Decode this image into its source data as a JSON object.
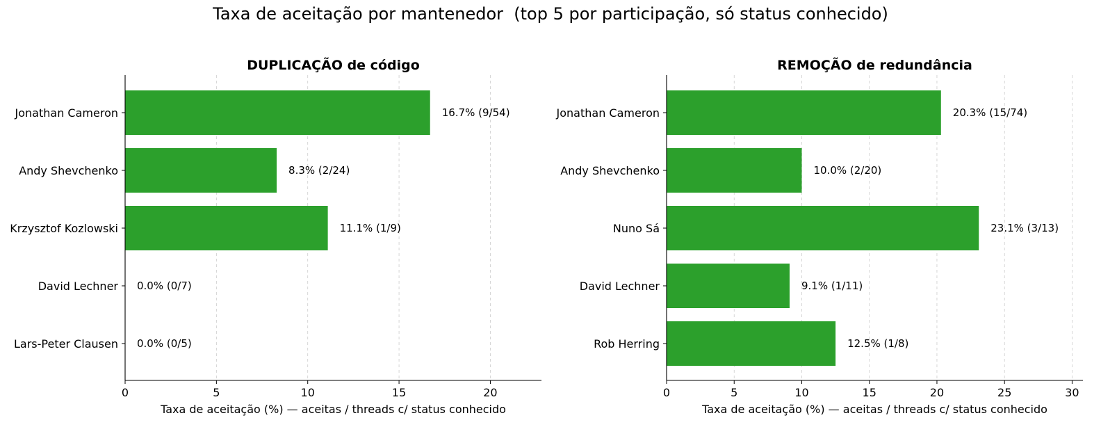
{
  "suptitle": "Taxa de aceitação por mantenedor  (top 5 por participação, só status conhecido)",
  "colors": {
    "bar": "#2ca02c",
    "grid": "#cccccc",
    "axis": "#000000"
  },
  "chart_data": [
    {
      "type": "bar",
      "orientation": "horizontal",
      "title": "DUPLICAÇÃO de código",
      "xlabel": "Taxa de aceitação (%) — aceitas / threads c/ status conhecido",
      "ylabel": "",
      "xlim": [
        0,
        22.8
      ],
      "xticks": [
        0,
        5,
        10,
        15,
        20
      ],
      "grid": "x, dashed",
      "categories": [
        "Jonathan Cameron",
        "Andy Shevchenko",
        "Krzysztof Kozlowski",
        "David Lechner",
        "Lars-Peter Clausen"
      ],
      "values": [
        16.7,
        8.3,
        11.1,
        0.0,
        0.0
      ],
      "data_labels": [
        "16.7%  (9/54)",
        "8.3%  (2/24)",
        "11.1%  (1/9)",
        "0.0%  (0/7)",
        "0.0%  (0/5)"
      ]
    },
    {
      "type": "bar",
      "orientation": "horizontal",
      "title": "REMOÇÃO de redundância",
      "xlabel": "Taxa de aceitação (%) — aceitas / threads c/ status conhecido",
      "ylabel": "",
      "xlim": [
        0,
        30.8
      ],
      "xticks": [
        0,
        5,
        10,
        15,
        20,
        25,
        30
      ],
      "grid": "x, dashed",
      "categories": [
        "Jonathan Cameron",
        "Andy Shevchenko",
        "Nuno Sá",
        "David Lechner",
        "Rob Herring"
      ],
      "values": [
        20.3,
        10.0,
        23.1,
        9.1,
        12.5
      ],
      "data_labels": [
        "20.3%  (15/74)",
        "10.0%  (2/20)",
        "23.1%  (3/13)",
        "9.1%  (1/11)",
        "12.5%  (1/8)"
      ]
    }
  ]
}
